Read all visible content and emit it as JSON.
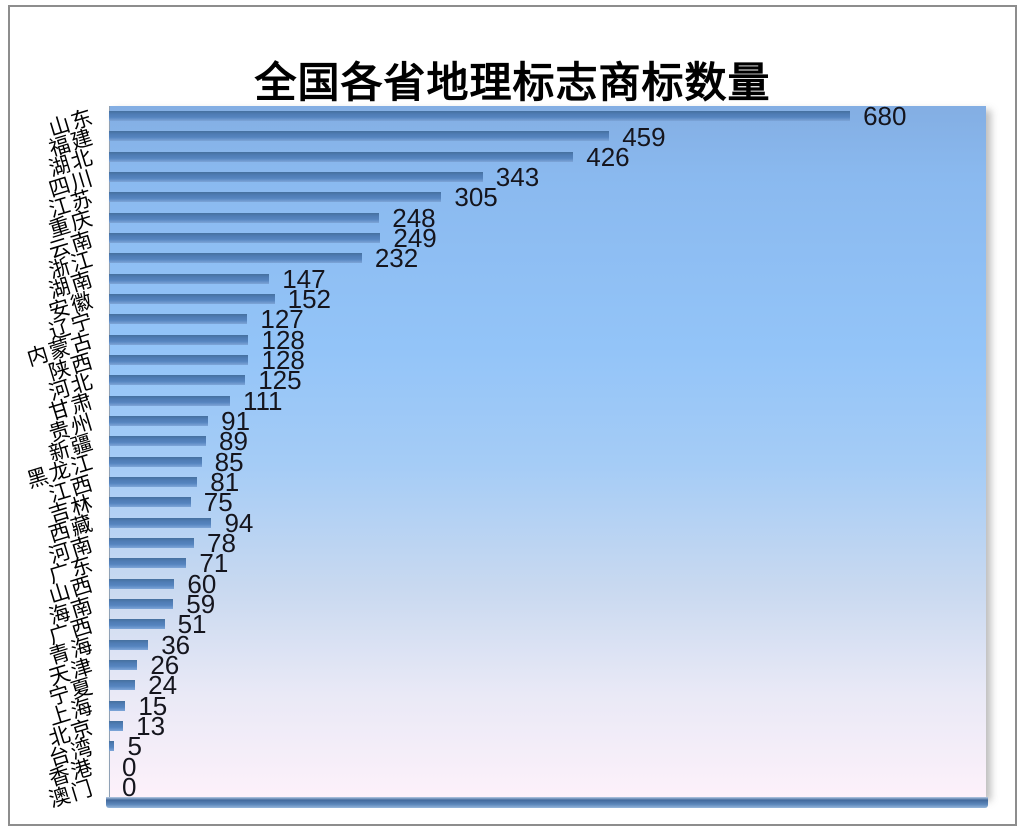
{
  "chart_data": {
    "type": "bar",
    "orientation": "horizontal",
    "title": "全国各省地理标志商标数量",
    "categories": [
      "山东",
      "福建",
      "湖北",
      "四川",
      "江苏",
      "重庆",
      "云南",
      "浙江",
      "湖南",
      "安徽",
      "辽宁",
      "内蒙古",
      "陕西",
      "河北",
      "甘肃",
      "贵州",
      "新疆",
      "黑龙江",
      "江西",
      "吉林",
      "西藏",
      "河南",
      "广东",
      "山西",
      "海南",
      "广西",
      "青海",
      "天津",
      "宁夏",
      "上海",
      "北京",
      "台湾",
      "香港",
      "澳门"
    ],
    "values": [
      680,
      459,
      426,
      343,
      305,
      248,
      249,
      232,
      147,
      152,
      127,
      128,
      128,
      125,
      111,
      91,
      89,
      85,
      81,
      75,
      94,
      78,
      71,
      60,
      59,
      51,
      36,
      26,
      24,
      15,
      13,
      5,
      0,
      0
    ],
    "data_labels_shown": true,
    "legend": "none",
    "axes": {
      "x_axis_visible": false,
      "y_axis_visible": true,
      "gridlines": false,
      "x_max_hint": 805
    },
    "layout_hints": {
      "max_value": 680,
      "max_bar_percent_of_plot": 84.5,
      "category_label_rotation_deg": -17
    },
    "colors": {
      "bar": "#5584bf",
      "bar_edge_top": "#46709f",
      "bar_edge_bottom": "#7ea5d8",
      "plot_bg_top": "#83aee3",
      "plot_bg_mid": "#93c4f8",
      "plot_bg_lower": "#e9e9f6",
      "plot_bg_bottom": "#fdf1fa",
      "floor_strip": "#42699c",
      "frame_border": "#8d8d8d",
      "title": "#000000",
      "value_text": "#15151d"
    }
  }
}
